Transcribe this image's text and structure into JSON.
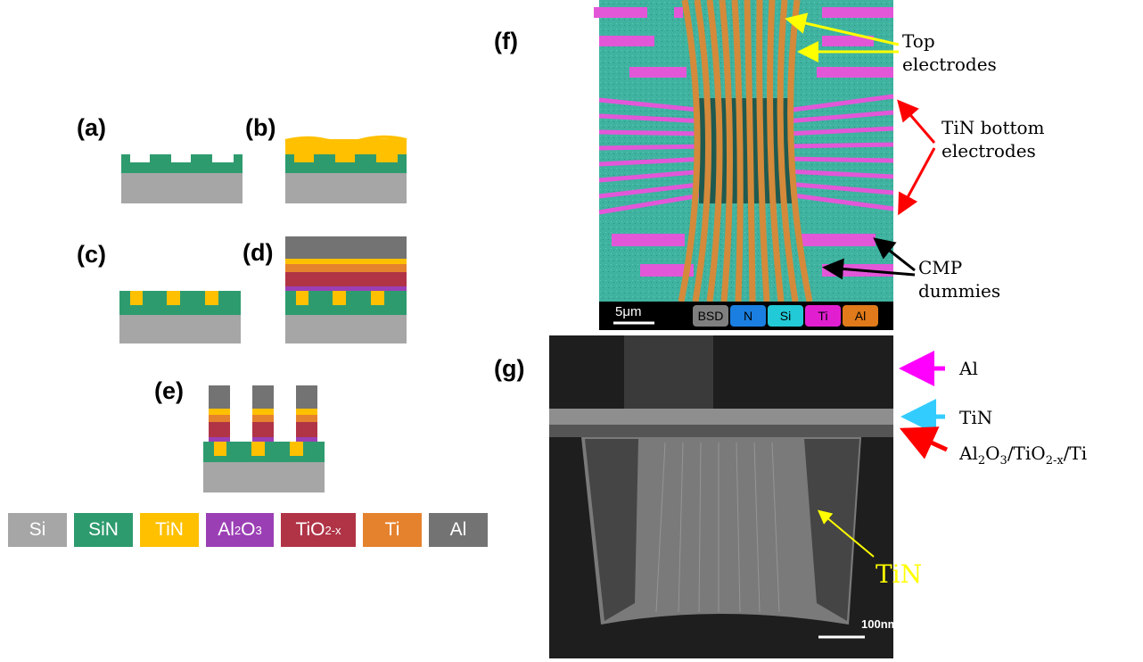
{
  "panels": {
    "a": "(a)",
    "b": "(b)",
    "c": "(c)",
    "d": "(d)",
    "e": "(e)",
    "f": "(f)",
    "g": "(g)"
  },
  "legend": [
    {
      "label": "Si",
      "color": "#a6a6a6"
    },
    {
      "label": "SiN",
      "color": "#2e9b6e"
    },
    {
      "label": "TiN",
      "color": "#ffc000"
    },
    {
      "label_main": "Al",
      "label_sub1": "2",
      "label_mid": "O",
      "label_sub2": "3",
      "color": "#9b3fb5"
    },
    {
      "label_main": "TiO",
      "label_sub": "2-x",
      "color": "#b03446"
    },
    {
      "label": "Ti",
      "color": "#e5822e"
    },
    {
      "label": "Al",
      "color": "#737373"
    }
  ],
  "sem_f": {
    "annotations": {
      "top": [
        "Top",
        "electrodes"
      ],
      "tin_bottom": [
        "TiN bottom",
        "electrodes"
      ],
      "cmp": [
        "CMP",
        "dummies"
      ]
    },
    "scale_bar": "5μm",
    "eds_legend": [
      {
        "label": "BSD",
        "color": "#7f7f7f"
      },
      {
        "label": "N",
        "color": "#1a7fe0"
      },
      {
        "label": "Si",
        "color": "#22c9d6"
      },
      {
        "label": "Ti",
        "color": "#e21fd0"
      },
      {
        "label": "Al",
        "color": "#e07a1a"
      }
    ]
  },
  "tem_g": {
    "annotations": {
      "al": "Al",
      "tin": "TiN",
      "stack_main": "Al",
      "stack_sub1": "2",
      "stack_o": "O",
      "stack_sub2": "3",
      "stack_tio": "/TiO",
      "stack_sub3": "2-x",
      "stack_ti": "/Ti",
      "tin_core": "TiN"
    },
    "scale_bar": "100nm"
  },
  "colors": {
    "si": "#a6a6a6",
    "sin": "#2e9b6e",
    "tin": "#ffc000",
    "al2o3": "#9b3fb5",
    "tio2": "#b03446",
    "ti": "#e5822e",
    "al": "#737373",
    "arrow_yellow": "#ffff00",
    "arrow_red": "#ff0000",
    "arrow_black": "#000000",
    "arrow_magenta": "#ff00ff",
    "arrow_cyan": "#33ccff"
  }
}
